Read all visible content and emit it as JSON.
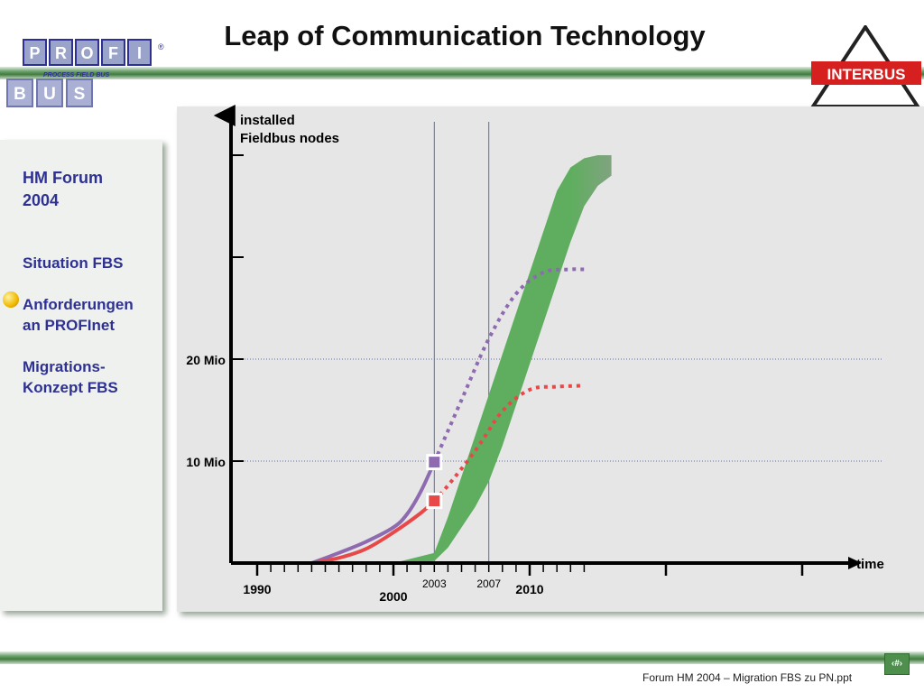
{
  "slide": {
    "title": "Leap of Communication Technology",
    "footer": "Forum HM 2004 – Migration FBS zu PN.ppt",
    "page_badge": "‹#›"
  },
  "logos": {
    "left": {
      "row1": [
        "P",
        "R",
        "O",
        "F",
        "I"
      ],
      "tagline": "PROCESS FIELD BUS",
      "row2": [
        "B",
        "U",
        "S"
      ],
      "mark": "®"
    },
    "right": {
      "text": "INTERBUS"
    }
  },
  "sidebar": {
    "heading": [
      "HM Forum",
      "2004"
    ],
    "items": [
      {
        "lines": [
          "Situation FBS"
        ],
        "active": false
      },
      {
        "lines": [
          "Anforderungen",
          "an PROFInet"
        ],
        "active": true
      },
      {
        "lines": [
          "Migrations-",
          "Konzept FBS"
        ],
        "active": false
      }
    ]
  },
  "colors": {
    "sidebar_text": "#2e3192",
    "purple_series": "#8e6bb0",
    "red_series": "#e84848",
    "green_band": "#5fae5f",
    "bar_green": "#3f7c3f"
  },
  "chart_data": {
    "type": "line",
    "title": "",
    "ylabel": [
      "installed",
      "Fieldbus nodes"
    ],
    "xlabel": "time",
    "xlim": [
      1985,
      2015
    ],
    "ylim": [
      0,
      40
    ],
    "y_ticks": [
      {
        "value": 10,
        "label": "10 Mio"
      },
      {
        "value": 20,
        "label": "20 Mio"
      },
      {
        "value": 30,
        "label": ""
      },
      {
        "value": 40,
        "label": ""
      }
    ],
    "x_major_ticks": [
      {
        "value": 1990,
        "label": "1990"
      },
      {
        "value": 2000,
        "label": "2000"
      },
      {
        "value": 2010,
        "label": "2010"
      }
    ],
    "x_minor_ticks": [
      1991,
      1992,
      1993,
      1994,
      1995,
      1996,
      1997,
      1998,
      1999,
      2001,
      2002,
      2003,
      2004,
      2005,
      2006,
      2007,
      2008,
      2009,
      2011,
      2012,
      2013,
      2014
    ],
    "x_extra_major": [
      2020,
      2030
    ],
    "marker_lines": [
      {
        "value": 2003,
        "label": "2003"
      },
      {
        "value": 2007,
        "label": "2007"
      }
    ],
    "grid": "horizontal-dotted",
    "series": [
      {
        "name": "",
        "color": "#8e6bb0",
        "solid_until": 2003,
        "marker": {
          "x": 2003,
          "y": 9.9
        },
        "points": [
          [
            1994,
            0
          ],
          [
            1996,
            1
          ],
          [
            1998,
            2.1
          ],
          [
            2000,
            3.5
          ],
          [
            2001,
            4.8
          ],
          [
            2002,
            7
          ],
          [
            2003,
            9.9
          ],
          [
            2005,
            16
          ],
          [
            2007,
            22
          ],
          [
            2009,
            26.4
          ],
          [
            2011,
            28.5
          ],
          [
            2013,
            28.8
          ],
          [
            2014,
            28.8
          ]
        ]
      },
      {
        "name": "",
        "color": "#e84848",
        "solid_until": 2003,
        "marker": {
          "x": 2003,
          "y": 6.1
        },
        "points": [
          [
            1994,
            0
          ],
          [
            1996,
            0.5
          ],
          [
            1998,
            1.4
          ],
          [
            2000,
            3
          ],
          [
            2002,
            4.9
          ],
          [
            2003,
            6.1
          ],
          [
            2004,
            7.6
          ],
          [
            2006,
            11
          ],
          [
            2008,
            14.9
          ],
          [
            2010,
            17
          ],
          [
            2012,
            17.3
          ],
          [
            2014,
            17.4
          ]
        ]
      }
    ],
    "band": {
      "color": "#5fae5f",
      "fade_to": "#e6e6e6",
      "lower": [
        [
          2000,
          0
        ],
        [
          2003,
          0.2
        ],
        [
          2004,
          1.5
        ],
        [
          2005,
          3.5
        ],
        [
          2006,
          5.5
        ],
        [
          2007,
          8
        ],
        [
          2008,
          11.5
        ],
        [
          2009,
          15.5
        ],
        [
          2010,
          19.5
        ],
        [
          2011,
          23.5
        ],
        [
          2012,
          27.5
        ],
        [
          2013,
          31.5
        ],
        [
          2014,
          35
        ],
        [
          2015,
          37
        ],
        [
          2016,
          38
        ]
      ],
      "upper": [
        [
          2003,
          1
        ],
        [
          2004,
          4.5
        ],
        [
          2005,
          8.5
        ],
        [
          2006,
          12.5
        ],
        [
          2007,
          16.5
        ],
        [
          2008,
          20.5
        ],
        [
          2009,
          24.5
        ],
        [
          2010,
          28.5
        ],
        [
          2011,
          32.5
        ],
        [
          2012,
          36.5
        ],
        [
          2013,
          38.8
        ],
        [
          2014,
          39.7
        ],
        [
          2015,
          40
        ],
        [
          2016,
          40
        ]
      ]
    }
  }
}
